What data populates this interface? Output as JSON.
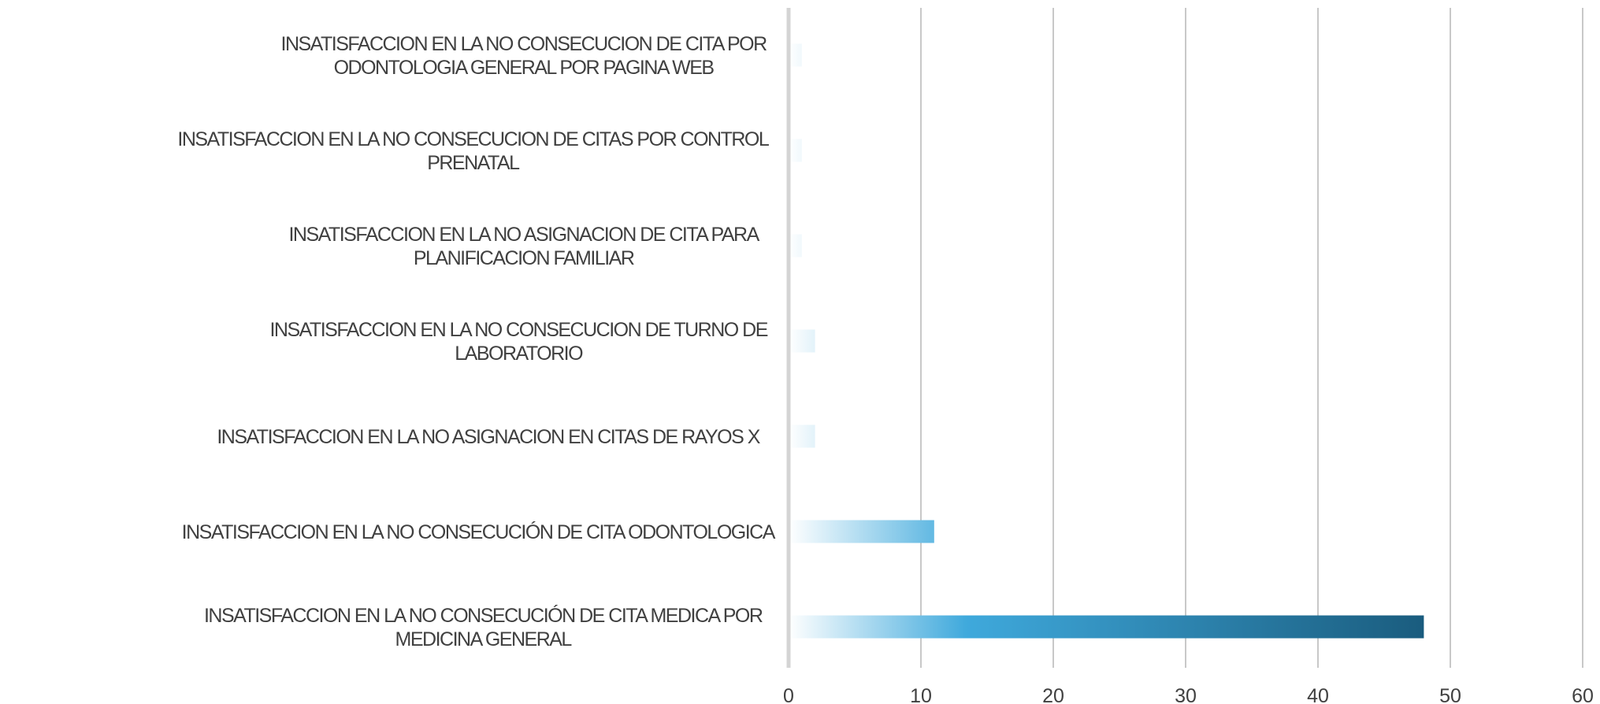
{
  "chart_data": {
    "type": "bar",
    "orientation": "horizontal",
    "title": "",
    "xlabel": "",
    "ylabel": "",
    "xlim": [
      0,
      60
    ],
    "x_ticks": [
      0,
      10,
      20,
      30,
      40,
      50,
      60
    ],
    "grid": "vertical",
    "legend": "none",
    "bar_gradient": [
      "#ffffff",
      "#3fa9dc",
      "#1a5c7e"
    ],
    "categories": [
      [
        "INSATISFACCION EN LA NO  CONSECUCION DE CITA POR",
        "ODONTOLOGIA GENERAL POR PAGINA WEB"
      ],
      [
        "INSATISFACCION  EN LA NO  CONSECUCION DE CITAS POR CONTROL",
        "PRENATAL"
      ],
      [
        "INSATISFACCION EN LA NO  ASIGNACION DE CITA PARA",
        "PLANIFICACION FAMILIAR"
      ],
      [
        "INSATISFACCION  EN LA NO  CONSECUCION DE TURNO DE",
        "LABORATORIO"
      ],
      [
        "INSATISFACCION EN LA NO  ASIGNACION EN CITAS DE RAYOS X"
      ],
      [
        "INSATISFACCION EN LA NO  CONSECUCIÓN DE CITA ODONTOLOGICA"
      ],
      [
        "INSATISFACCION  EN LA  NO CONSECUCIÓN DE CITA MEDICA POR",
        "MEDICINA GENERAL"
      ]
    ],
    "values": [
      1,
      1,
      1,
      2,
      2,
      11,
      48
    ]
  }
}
